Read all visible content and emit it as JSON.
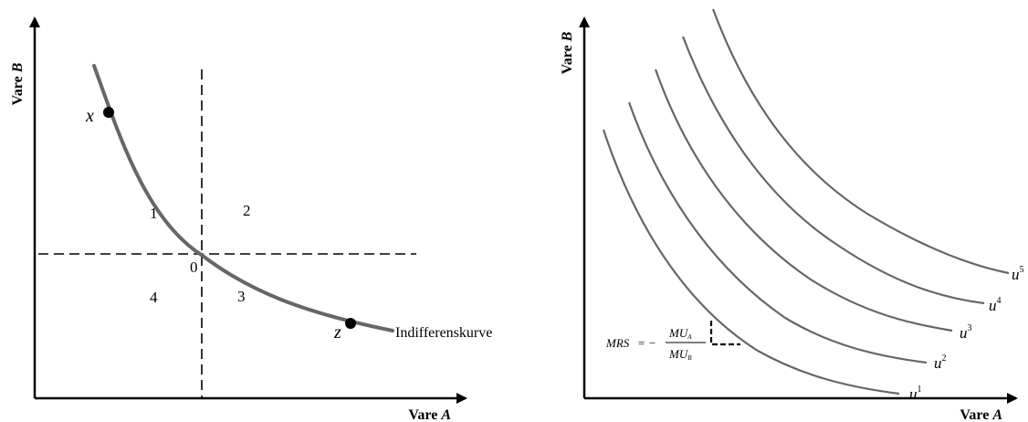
{
  "left_panel": {
    "y_axis_label_prefix": "Vare ",
    "y_axis_label_var": "B",
    "x_axis_label_prefix": "Vare ",
    "x_axis_label_var": "A",
    "regions": [
      "1",
      "2",
      "3",
      "4"
    ],
    "origin_label": "0",
    "point_x_label": "x",
    "point_z_label": "z",
    "curve_label": "Indifferenskurve"
  },
  "right_panel": {
    "y_axis_label_prefix": "Vare ",
    "y_axis_label_var": "B",
    "x_axis_label_prefix": "Vare ",
    "x_axis_label_var": "A",
    "curves": [
      {
        "base": "u",
        "sup": "1"
      },
      {
        "base": "u",
        "sup": "2"
      },
      {
        "base": "u",
        "sup": "3"
      },
      {
        "base": "u",
        "sup": "4"
      },
      {
        "base": "u",
        "sup": "5"
      }
    ],
    "mrs": {
      "lhs": "MRS",
      "equals_minus": "= −",
      "numerator": "MU",
      "numerator_sub": "A",
      "denominator": "MU",
      "denominator_sub": "B"
    }
  },
  "colors": {
    "axis": "#000000",
    "curve": "#666666"
  }
}
